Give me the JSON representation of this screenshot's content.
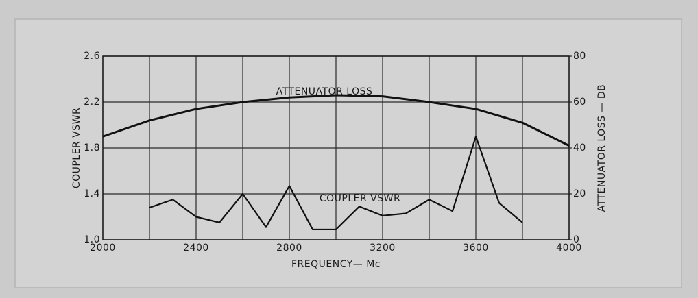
{
  "chart_data": {
    "type": "line",
    "x_label": "FREQUENCY— Mc",
    "y_label": "COUPLER VSWR",
    "y2_label": "ATTENUATOR LOSS — DB",
    "annotations": [
      "ATTENUATOR LOSS",
      "COUPLER VSWR"
    ],
    "xlim": [
      2000,
      4000
    ],
    "xticks": [
      2000,
      2400,
      2800,
      3200,
      3600,
      4000
    ],
    "x_minor_ticks": [
      2200,
      2600,
      3000,
      3400,
      3800
    ],
    "ylim": [
      1,
      2.6
    ],
    "yticks": [
      {
        "value": 1,
        "label": "1.0"
      },
      1.4,
      1.8,
      2.2,
      2.6
    ],
    "y2lim": [
      0,
      80
    ],
    "y2ticks": [
      0,
      20,
      40,
      60,
      80
    ],
    "grid": true,
    "series": [
      {
        "name": "ATTENUATOR LOSS",
        "color": "#111111",
        "axis": "y2",
        "x": [
          2000,
          2200,
          2400,
          2600,
          2800,
          3000,
          3200,
          3400,
          3600,
          3800,
          4000
        ],
        "values": [
          45,
          52,
          57,
          60,
          62,
          63,
          62.5,
          60,
          57,
          51,
          41
        ]
      },
      {
        "name": "COUPLER VSWR",
        "color": "#111111",
        "axis": "y",
        "x": [
          2200,
          2300,
          2400,
          2500,
          2600,
          2700,
          2800,
          2900,
          3000,
          3100,
          3200,
          3300,
          3400,
          3500,
          3600,
          3700,
          3800
        ],
        "values": [
          1.28,
          1.35,
          1.2,
          1.15,
          1.4,
          1.11,
          1.47,
          1.09,
          1.09,
          1.29,
          1.21,
          1.23,
          1.35,
          1.25,
          1.9,
          1.32,
          1.15
        ]
      }
    ]
  }
}
